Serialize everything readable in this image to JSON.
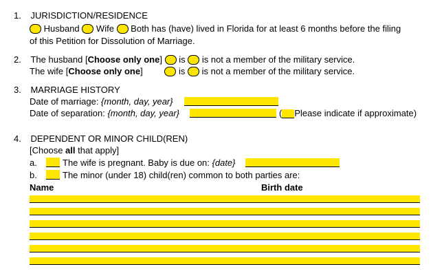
{
  "s1": {
    "num": "1.",
    "title": "JURISDICTION/RESIDENCE",
    "husband": "Husband",
    "wife": "Wife",
    "both": "Both has (have) lived in Florida for at least 6 months before the filing",
    "cont": "of this Petition for Dissolution of Marriage."
  },
  "s2": {
    "num": "2.",
    "husband_prefix": "The husband [",
    "wife_prefix": "The wife [",
    "choose": "Choose only one",
    "close": "]",
    "is": "is",
    "not_member": "is not a member of the military service."
  },
  "s3": {
    "num": "3.",
    "title": "MARRIAGE HISTORY",
    "date_marriage": "Date of marriage: ",
    "date_separation": "Date of separation: ",
    "date_hint": "{month, day, year}",
    "approx": "Please indicate if approximate)"
  },
  "s4": {
    "num": "4.",
    "title": "DEPENDENT OR MINOR CHILD(REN)",
    "choose_open": "[Choose ",
    "choose_all": "all",
    "choose_close": " that apply]",
    "a": "a.",
    "pregnant": "The wife is pregnant.  Baby is due on: ",
    "date_hint": "{date}",
    "b": "b.",
    "minor": "The minor (under 18) child(ren) common to both parties are:",
    "name_col": "Name",
    "birth_col": "Birth date"
  },
  "colors": {
    "highlight": "#ffe600"
  }
}
